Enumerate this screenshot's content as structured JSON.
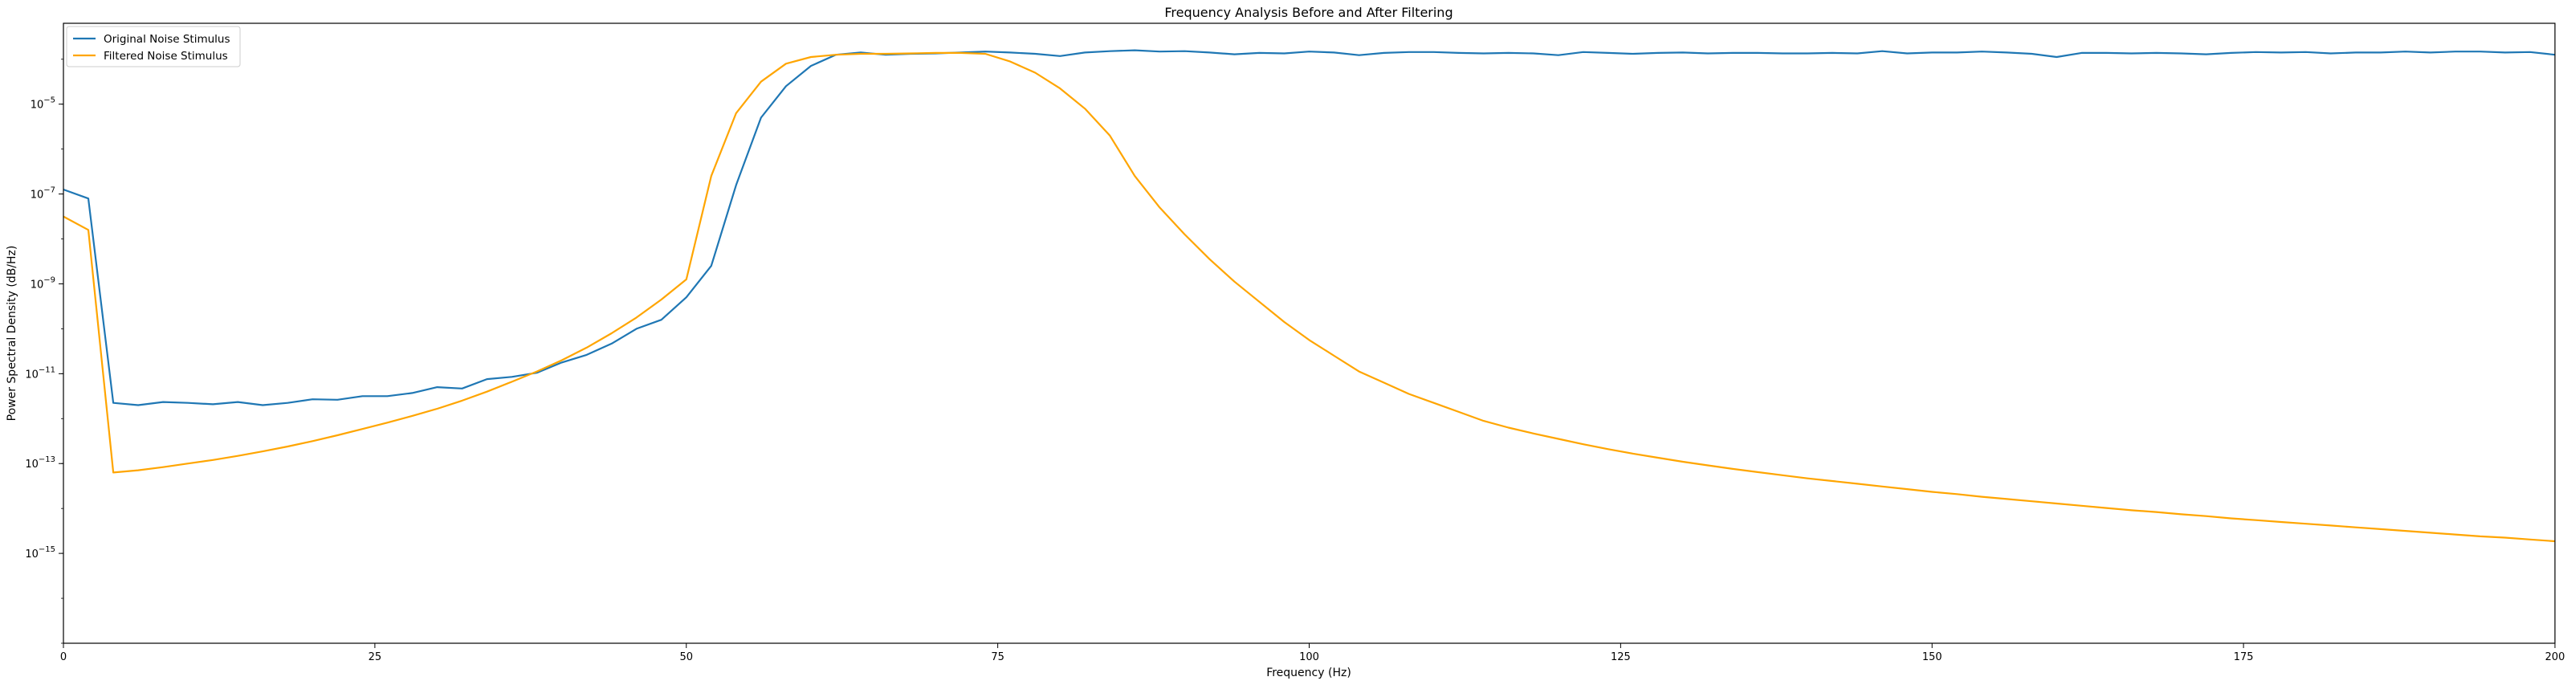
{
  "chart_data": {
    "type": "line",
    "title": "Frequency Analysis Before and After Filtering",
    "xlabel": "Frequency (Hz)",
    "ylabel": "Power Spectral Density (dB/Hz)",
    "xlim": [
      0,
      200
    ],
    "ylim_log10": [
      -17,
      -3.2
    ],
    "yscale": "log",
    "x_ticks": [
      0,
      25,
      50,
      75,
      100,
      125,
      150,
      175,
      200
    ],
    "y_tick_exponents": [
      -15,
      -13,
      -11,
      -9,
      -7,
      -5
    ],
    "grid": false,
    "legend_position": "top-left",
    "series": [
      {
        "name": "Original Noise Stimulus",
        "color": "#1f77b4",
        "x": [
          0,
          2,
          4,
          6,
          8,
          10,
          12,
          14,
          16,
          18,
          20,
          22,
          24,
          26,
          28,
          30,
          32,
          34,
          36,
          38,
          40,
          42,
          44,
          46,
          48,
          50,
          52,
          54,
          56,
          58,
          60,
          62,
          64,
          66,
          68,
          70,
          72,
          74,
          76,
          78,
          80,
          82,
          84,
          86,
          88,
          90,
          92,
          94,
          96,
          98,
          100,
          102,
          104,
          106,
          108,
          110,
          112,
          114,
          116,
          118,
          120,
          122,
          124,
          126,
          128,
          130,
          132,
          134,
          136,
          138,
          140,
          142,
          144,
          146,
          148,
          150,
          152,
          154,
          156,
          158,
          160,
          162,
          164,
          166,
          168,
          170,
          172,
          174,
          176,
          178,
          180,
          182,
          184,
          186,
          188,
          190,
          192,
          194,
          196,
          198,
          200
        ],
        "log10_y": [
          -6.9,
          -7.1,
          -11.65,
          -11.7,
          -11.63,
          -11.65,
          -11.68,
          -11.63,
          -11.7,
          -11.65,
          -11.57,
          -11.58,
          -11.5,
          -11.5,
          -11.43,
          -11.3,
          -11.33,
          -11.12,
          -11.07,
          -10.98,
          -10.75,
          -10.58,
          -10.33,
          -10.0,
          -9.8,
          -9.3,
          -8.6,
          -6.8,
          -5.3,
          -4.6,
          -4.15,
          -3.9,
          -3.85,
          -3.9,
          -3.88,
          -3.87,
          -3.85,
          -3.83,
          -3.85,
          -3.88,
          -3.93,
          -3.85,
          -3.82,
          -3.8,
          -3.83,
          -3.82,
          -3.85,
          -3.89,
          -3.86,
          -3.87,
          -3.83,
          -3.85,
          -3.91,
          -3.86,
          -3.84,
          -3.84,
          -3.86,
          -3.87,
          -3.86,
          -3.87,
          -3.91,
          -3.84,
          -3.86,
          -3.88,
          -3.86,
          -3.85,
          -3.87,
          -3.86,
          -3.86,
          -3.87,
          -3.87,
          -3.86,
          -3.87,
          -3.82,
          -3.87,
          -3.85,
          -3.85,
          -3.83,
          -3.85,
          -3.88,
          -3.95,
          -3.86,
          -3.86,
          -3.87,
          -3.86,
          -3.87,
          -3.89,
          -3.86,
          -3.84,
          -3.85,
          -3.84,
          -3.87,
          -3.85,
          -3.85,
          -3.83,
          -3.85,
          -3.83,
          -3.83,
          -3.85,
          -3.84,
          -3.9
        ]
      },
      {
        "name": "Filtered Noise Stimulus",
        "color": "#ffa500",
        "x": [
          0,
          2,
          4,
          6,
          8,
          10,
          12,
          14,
          16,
          18,
          20,
          22,
          24,
          26,
          28,
          30,
          32,
          34,
          36,
          38,
          40,
          42,
          44,
          46,
          48,
          50,
          52,
          54,
          56,
          58,
          60,
          62,
          64,
          66,
          68,
          70,
          72,
          74,
          76,
          78,
          80,
          82,
          84,
          86,
          88,
          90,
          92,
          94,
          96,
          98,
          100,
          102,
          104,
          106,
          108,
          110,
          112,
          114,
          116,
          118,
          120,
          122,
          124,
          126,
          128,
          130,
          132,
          134,
          136,
          138,
          140,
          142,
          144,
          146,
          148,
          150,
          152,
          154,
          156,
          158,
          160,
          162,
          164,
          166,
          168,
          170,
          172,
          174,
          176,
          178,
          180,
          182,
          184,
          186,
          188,
          190,
          192,
          194,
          196,
          198,
          200
        ],
        "log10_y": [
          -7.5,
          -7.8,
          -13.2,
          -13.15,
          -13.08,
          -13.0,
          -12.92,
          -12.83,
          -12.73,
          -12.62,
          -12.5,
          -12.37,
          -12.23,
          -12.09,
          -11.94,
          -11.78,
          -11.6,
          -11.4,
          -11.18,
          -10.95,
          -10.7,
          -10.42,
          -10.1,
          -9.75,
          -9.35,
          -8.9,
          -6.6,
          -5.2,
          -4.5,
          -4.1,
          -3.95,
          -3.9,
          -3.88,
          -3.88,
          -3.87,
          -3.86,
          -3.86,
          -3.88,
          -4.05,
          -4.3,
          -4.65,
          -5.1,
          -5.7,
          -6.6,
          -7.3,
          -7.9,
          -8.45,
          -8.95,
          -9.4,
          -9.85,
          -10.25,
          -10.6,
          -10.95,
          -11.2,
          -11.45,
          -11.65,
          -11.85,
          -12.05,
          -12.2,
          -12.33,
          -12.45,
          -12.57,
          -12.68,
          -12.78,
          -12.87,
          -12.96,
          -13.04,
          -13.12,
          -13.19,
          -13.26,
          -13.33,
          -13.39,
          -13.45,
          -13.51,
          -13.57,
          -13.63,
          -13.68,
          -13.74,
          -13.79,
          -13.84,
          -13.89,
          -13.94,
          -13.99,
          -14.04,
          -14.08,
          -14.13,
          -14.17,
          -14.22,
          -14.26,
          -14.3,
          -14.34,
          -14.38,
          -14.42,
          -14.46,
          -14.5,
          -14.54,
          -14.58,
          -14.62,
          -14.65,
          -14.69,
          -14.73
        ]
      }
    ]
  }
}
